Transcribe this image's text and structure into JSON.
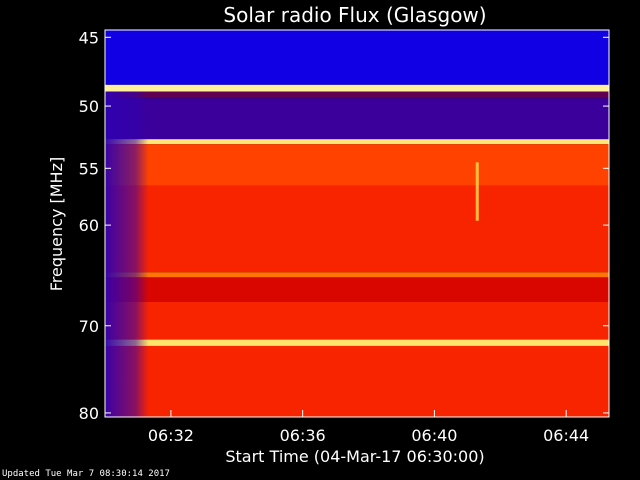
{
  "chart_data": {
    "type": "heatmap",
    "title": "Solar radio Flux (Glasgow)",
    "xlabel": "Start Time (04-Mar-17 06:30:00)",
    "ylabel": "Frequency [MHz]",
    "x_range_minutes_after_start": [
      0,
      15.3
    ],
    "x_ticks": [
      {
        "label": "06:32",
        "minutes": 2
      },
      {
        "label": "06:36",
        "minutes": 6
      },
      {
        "label": "06:40",
        "minutes": 10
      },
      {
        "label": "06:44",
        "minutes": 14
      }
    ],
    "y_scale": "log",
    "y_range_mhz": [
      44.5,
      80.5
    ],
    "y_ticks": [
      {
        "label": "45",
        "value": 45
      },
      {
        "label": "50",
        "value": 50
      },
      {
        "label": "55",
        "value": 55
      },
      {
        "label": "60",
        "value": 60
      },
      {
        "label": "70",
        "value": 70
      },
      {
        "label": "80",
        "value": 80
      }
    ],
    "colormap": [
      "#0000ff",
      "#3000b0",
      "#8a0000",
      "#d20000",
      "#ff2a00",
      "#ff7000",
      "#ffd84a",
      "#fff8b0"
    ],
    "bands": [
      {
        "from_mhz": 44.5,
        "to_mhz": 48.4,
        "level": 0.05
      },
      {
        "from_mhz": 48.4,
        "to_mhz": 48.9,
        "level": 0.97
      },
      {
        "from_mhz": 48.9,
        "to_mhz": 49.4,
        "level": 0.22
      },
      {
        "from_mhz": 49.4,
        "to_mhz": 52.6,
        "level": 0.16
      },
      {
        "from_mhz": 52.6,
        "to_mhz": 53.0,
        "level": 0.92
      },
      {
        "from_mhz": 53.0,
        "to_mhz": 56.5,
        "level": 0.62
      },
      {
        "from_mhz": 56.5,
        "to_mhz": 64.5,
        "level": 0.55
      },
      {
        "from_mhz": 64.5,
        "to_mhz": 65.0,
        "level": 0.72
      },
      {
        "from_mhz": 65.0,
        "to_mhz": 67.5,
        "level": 0.45
      },
      {
        "from_mhz": 67.5,
        "to_mhz": 71.5,
        "level": 0.55
      },
      {
        "from_mhz": 71.5,
        "to_mhz": 72.2,
        "level": 0.9
      },
      {
        "from_mhz": 72.2,
        "to_mhz": 80.5,
        "level": 0.55
      }
    ],
    "low_signal_until_minutes": 0.9,
    "features": [
      {
        "kind": "burst",
        "at_minutes": 11.3,
        "from_mhz": 54.5,
        "to_mhz": 59.6,
        "level": 0.85
      }
    ]
  },
  "footer": {
    "text": "Updated Tue Mar  7 08:30:14 2017"
  }
}
